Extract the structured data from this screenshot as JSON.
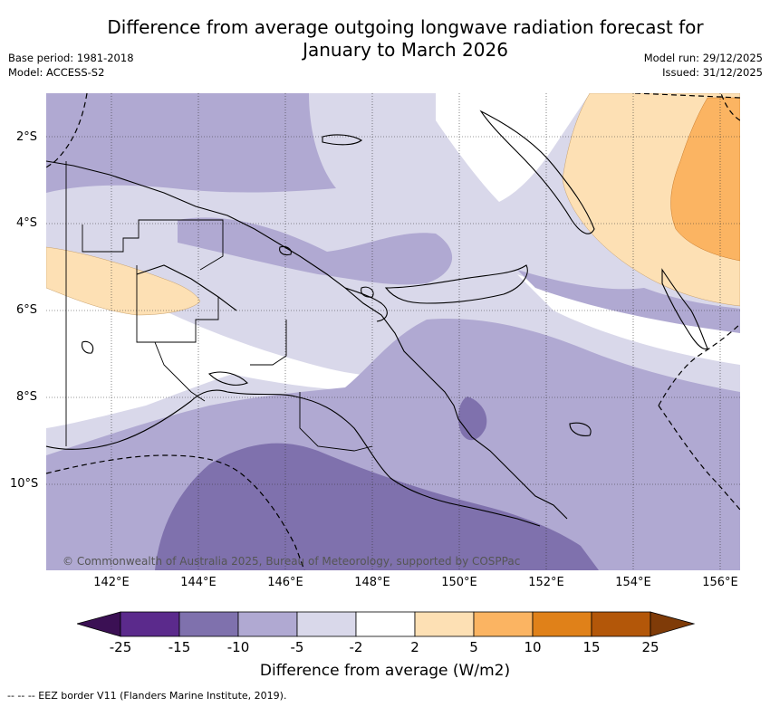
{
  "title": "Difference from average outgoing longwave radiation forecast for January to March 2026",
  "title_line1": "Difference from average outgoing longwave radiation forecast for",
  "title_line2": "January to March 2026",
  "base_period": "Base period: 1981-2018",
  "model": "Model: ACCESS-S2",
  "model_run": "Model run: 29/12/2025",
  "issued": "Issued: 31/12/2025",
  "credit": "© Commonwealth of Australia 2025, Bureau of Meteorology, supported by COSPPac",
  "lat_labels": [
    "2°S",
    "4°S",
    "6°S",
    "8°S",
    "10°S"
  ],
  "lon_labels": [
    "142°E",
    "144°E",
    "146°E",
    "148°E",
    "150°E",
    "152°E",
    "154°E",
    "156°E"
  ],
  "colorbar": {
    "ticks": [
      "-25",
      "-15",
      "-10",
      "-5",
      "-2",
      "2",
      "5",
      "10",
      "15",
      "25"
    ],
    "colors": [
      "#5b2a8c",
      "#7f71ad",
      "#b0a9d2",
      "#d9d8ea",
      "#ffffff",
      "#fde0b4",
      "#fbb462",
      "#e08119",
      "#b35709"
    ],
    "under_color": "#3b1054",
    "over_color": "#7f3b08",
    "label": "Difference from average (W/m2)"
  },
  "legend_text": "-- EEZ border V11 (Flanders Marine Institute, 2019).",
  "legend_dashes": "--  --",
  "colors": {
    "lavender_dark": "#7f71ad",
    "lavender_mid": "#b0a9d2",
    "lavender_light": "#d9d8ea",
    "orange_light": "#fde0b4",
    "orange_mid": "#fbb462"
  }
}
